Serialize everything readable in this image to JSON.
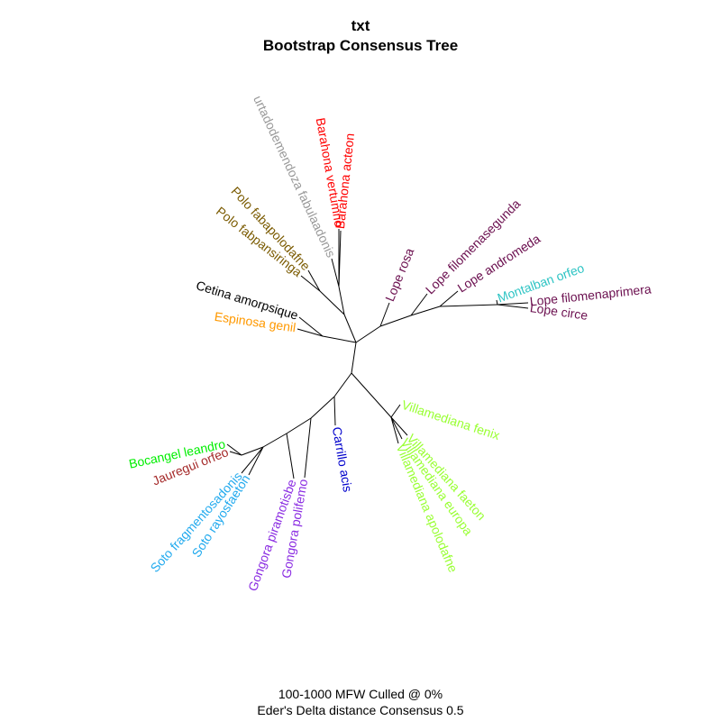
{
  "title": "txt",
  "subtitle": "Bootstrap Consensus Tree",
  "caption_line1": "100-1000 MFW  Culled @ 0%",
  "caption_line2": "Eder's Delta distance Consensus 0.5",
  "colors": {
    "barahona": "#ff0000",
    "hurtado": "#999999",
    "polo": "#7a5a00",
    "cetina": "#000000",
    "espinosa": "#ff9900",
    "lope": "#6b0f4f",
    "montalban": "#2ec4c4",
    "villamediana": "#99ff33",
    "carrillo": "#0000cc",
    "gongora": "#8a2be2",
    "soto": "#22aaee",
    "jauregui": "#a52a2a",
    "bocangel": "#00ee00",
    "branch": "#000000"
  },
  "tips": [
    {
      "id": "barahona_vertumno",
      "label": "Barahona vertumno",
      "group": "barahona"
    },
    {
      "id": "barahona_acteon",
      "label": "Barahona acteon",
      "group": "barahona"
    },
    {
      "id": "hurtado",
      "label": "urtadodemendoza fabulaadonis",
      "group": "hurtado"
    },
    {
      "id": "polo_fabapolodafne",
      "label": "Polo fabapolodafne",
      "group": "polo"
    },
    {
      "id": "polo_fabpansiringa",
      "label": "Polo fabpansiringa",
      "group": "polo"
    },
    {
      "id": "cetina",
      "label": "Cetina amorpsique",
      "group": "cetina"
    },
    {
      "id": "espinosa",
      "label": "Espinosa genil",
      "group": "espinosa"
    },
    {
      "id": "lope_rosa",
      "label": "Lope rosa",
      "group": "lope"
    },
    {
      "id": "lope_filomenasegunda",
      "label": "Lope filomenasegunda",
      "group": "lope"
    },
    {
      "id": "lope_andromeda",
      "label": "Lope andromeda",
      "group": "lope"
    },
    {
      "id": "montalban",
      "label": "Montalban orfeo",
      "group": "montalban"
    },
    {
      "id": "lope_filomenaprimera",
      "label": "Lope filomenaprimera",
      "group": "lope"
    },
    {
      "id": "lope_circe",
      "label": "Lope circe",
      "group": "lope"
    },
    {
      "id": "vill_fenix",
      "label": "Villamediana fenix",
      "group": "villamediana"
    },
    {
      "id": "vill_faeton",
      "label": "Villamediana faeton",
      "group": "villamediana"
    },
    {
      "id": "vill_europa",
      "label": "Villamediana europa",
      "group": "villamediana"
    },
    {
      "id": "vill_apolodafne",
      "label": "Villamediana apolodafne",
      "group": "villamediana"
    },
    {
      "id": "carrillo",
      "label": "Carrillo acis",
      "group": "carrillo"
    },
    {
      "id": "gongora_polifemo",
      "label": "Gongora polifemo",
      "group": "gongora"
    },
    {
      "id": "gongora_piramotisbe",
      "label": "Gongora piramotisbe",
      "group": "gongora"
    },
    {
      "id": "soto_rayosfaeton",
      "label": "Soto rayosfaeton",
      "group": "soto"
    },
    {
      "id": "soto_fragmentosadonis",
      "label": "Soto fragmentosadonis",
      "group": "soto"
    },
    {
      "id": "jauregui",
      "label": "Jauregui orfeo",
      "group": "jauregui"
    },
    {
      "id": "bocangel",
      "label": "Bocangel leandro",
      "group": "bocangel"
    }
  ]
}
